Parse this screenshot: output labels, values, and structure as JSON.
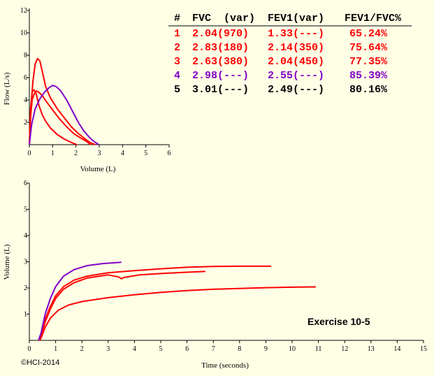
{
  "table": {
    "headers": [
      "#",
      "FVC",
      "(var)",
      "FEV1(var)",
      "FEV1/FVC%"
    ],
    "rows": [
      {
        "n": "1",
        "fvc": "2.04(970)",
        "fev1": "1.33(---)",
        "ratio": "65.24%",
        "color": "#ff0000"
      },
      {
        "n": "2",
        "fvc": "2.83(180)",
        "fev1": "2.14(350)",
        "ratio": "75.64%",
        "color": "#ff0000"
      },
      {
        "n": "3",
        "fvc": "2.63(380)",
        "fev1": "2.04(450)",
        "ratio": "77.35%",
        "color": "#ff0000"
      },
      {
        "n": "4",
        "fvc": "2.98(---)",
        "fev1": "2.55(---)",
        "ratio": "85.39%",
        "color": "#7f00c8"
      },
      {
        "n": "5",
        "fvc": "3.01(---)",
        "fev1": "2.49(---)",
        "ratio": "80.16%",
        "color": "#000000"
      }
    ]
  },
  "annotation": "Exercise 10-5",
  "copyright": "©HCI-2014",
  "chart_data": [
    {
      "type": "line",
      "title": "",
      "xlabel": "Volume (L)",
      "ylabel": "Flow (L/s)",
      "xlim": [
        0,
        6
      ],
      "ylim": [
        0,
        12
      ],
      "xticks": [
        "0",
        "1",
        "2",
        "3",
        "4",
        "5",
        "6"
      ],
      "yticks": [
        "2",
        "4",
        "6",
        "8",
        "10",
        "12"
      ],
      "series": [
        {
          "color": "#ff0000",
          "points": [
            [
              0,
              0
            ],
            [
              0.05,
              3.2
            ],
            [
              0.12,
              4.7
            ],
            [
              0.2,
              4.9
            ],
            [
              0.3,
              4.5
            ],
            [
              0.4,
              3.6
            ],
            [
              0.55,
              2.7
            ],
            [
              0.7,
              2.1
            ],
            [
              0.9,
              1.5
            ],
            [
              1.2,
              0.9
            ],
            [
              1.5,
              0.5
            ],
            [
              1.8,
              0.2
            ],
            [
              2.04,
              0
            ]
          ]
        },
        {
          "color": "#ff0000",
          "points": [
            [
              0,
              0
            ],
            [
              0.08,
              3.6
            ],
            [
              0.15,
              5.6
            ],
            [
              0.25,
              7.2
            ],
            [
              0.35,
              7.7
            ],
            [
              0.45,
              7.5
            ],
            [
              0.55,
              6.6
            ],
            [
              0.7,
              5.2
            ],
            [
              0.9,
              4.2
            ],
            [
              1.2,
              3.2
            ],
            [
              1.5,
              2.4
            ],
            [
              1.8,
              1.6
            ],
            [
              2.1,
              1.0
            ],
            [
              2.4,
              0.5
            ],
            [
              2.6,
              0.2
            ],
            [
              2.83,
              0
            ]
          ]
        },
        {
          "color": "#ff0000",
          "points": [
            [
              0,
              0
            ],
            [
              0.05,
              2.5
            ],
            [
              0.12,
              4.0
            ],
            [
              0.2,
              4.5
            ],
            [
              0.3,
              4.8
            ],
            [
              0.4,
              4.7
            ],
            [
              0.55,
              4.4
            ],
            [
              0.75,
              3.8
            ],
            [
              1.0,
              3.1
            ],
            [
              1.3,
              2.3
            ],
            [
              1.6,
              1.6
            ],
            [
              1.9,
              1.0
            ],
            [
              2.2,
              0.6
            ],
            [
              2.45,
              0.3
            ],
            [
              2.63,
              0
            ]
          ]
        },
        {
          "color": "#7f00c8",
          "points": [
            [
              0,
              0
            ],
            [
              0.1,
              1.8
            ],
            [
              0.25,
              3.2
            ],
            [
              0.45,
              4.1
            ],
            [
              0.65,
              4.7
            ],
            [
              0.85,
              5.1
            ],
            [
              1.0,
              5.3
            ],
            [
              1.15,
              5.2
            ],
            [
              1.35,
              4.8
            ],
            [
              1.6,
              4.0
            ],
            [
              1.85,
              3.0
            ],
            [
              2.1,
              2.0
            ],
            [
              2.35,
              1.2
            ],
            [
              2.6,
              0.6
            ],
            [
              2.8,
              0.25
            ],
            [
              2.98,
              0
            ]
          ]
        }
      ]
    },
    {
      "type": "line",
      "title": "",
      "xlabel": "Time (seconds)",
      "ylabel": "Volume (L)",
      "xlim": [
        0,
        15
      ],
      "ylim": [
        0,
        6
      ],
      "xticks": [
        "0",
        "1",
        "2",
        "3",
        "4",
        "5",
        "6",
        "7",
        "8",
        "9",
        "10",
        "11",
        "12",
        "13",
        "14",
        "15"
      ],
      "yticks": [
        "1",
        "2",
        "3",
        "4",
        "5",
        "6"
      ],
      "series": [
        {
          "color": "#ff0000",
          "points": [
            [
              0.4,
              0
            ],
            [
              0.45,
              0.1
            ],
            [
              0.6,
              0.5
            ],
            [
              0.8,
              0.85
            ],
            [
              1.1,
              1.15
            ],
            [
              1.5,
              1.35
            ],
            [
              2,
              1.48
            ],
            [
              3,
              1.63
            ],
            [
              4,
              1.74
            ],
            [
              5,
              1.83
            ],
            [
              6,
              1.9
            ],
            [
              7,
              1.95
            ],
            [
              8,
              1.98
            ],
            [
              9,
              2.01
            ],
            [
              10,
              2.03
            ],
            [
              10.9,
              2.04
            ]
          ]
        },
        {
          "color": "#ff0000",
          "points": [
            [
              0.35,
              0
            ],
            [
              0.45,
              0.2
            ],
            [
              0.6,
              0.7
            ],
            [
              0.8,
              1.2
            ],
            [
              1.0,
              1.6
            ],
            [
              1.3,
              1.95
            ],
            [
              1.7,
              2.2
            ],
            [
              2.2,
              2.38
            ],
            [
              3,
              2.5
            ],
            [
              3.4,
              2.42
            ],
            [
              3.5,
              2.35
            ],
            [
              3.6,
              2.4
            ],
            [
              4.2,
              2.5
            ],
            [
              5,
              2.55
            ],
            [
              6,
              2.6
            ],
            [
              6.7,
              2.63
            ]
          ]
        },
        {
          "color": "#ff0000",
          "points": [
            [
              0.35,
              0
            ],
            [
              0.45,
              0.25
            ],
            [
              0.6,
              0.8
            ],
            [
              0.8,
              1.3
            ],
            [
              1.0,
              1.7
            ],
            [
              1.3,
              2.05
            ],
            [
              1.7,
              2.3
            ],
            [
              2.2,
              2.45
            ],
            [
              3,
              2.58
            ],
            [
              4,
              2.66
            ],
            [
              5,
              2.73
            ],
            [
              6,
              2.79
            ],
            [
              7,
              2.82
            ],
            [
              8,
              2.83
            ],
            [
              9.2,
              2.83
            ]
          ]
        },
        {
          "color": "#7f00c8",
          "points": [
            [
              0.35,
              0
            ],
            [
              0.45,
              0.3
            ],
            [
              0.6,
              1.0
            ],
            [
              0.8,
              1.6
            ],
            [
              1.0,
              2.05
            ],
            [
              1.3,
              2.45
            ],
            [
              1.7,
              2.7
            ],
            [
              2.2,
              2.85
            ],
            [
              2.8,
              2.93
            ],
            [
              3.5,
              2.98
            ]
          ]
        }
      ]
    }
  ]
}
